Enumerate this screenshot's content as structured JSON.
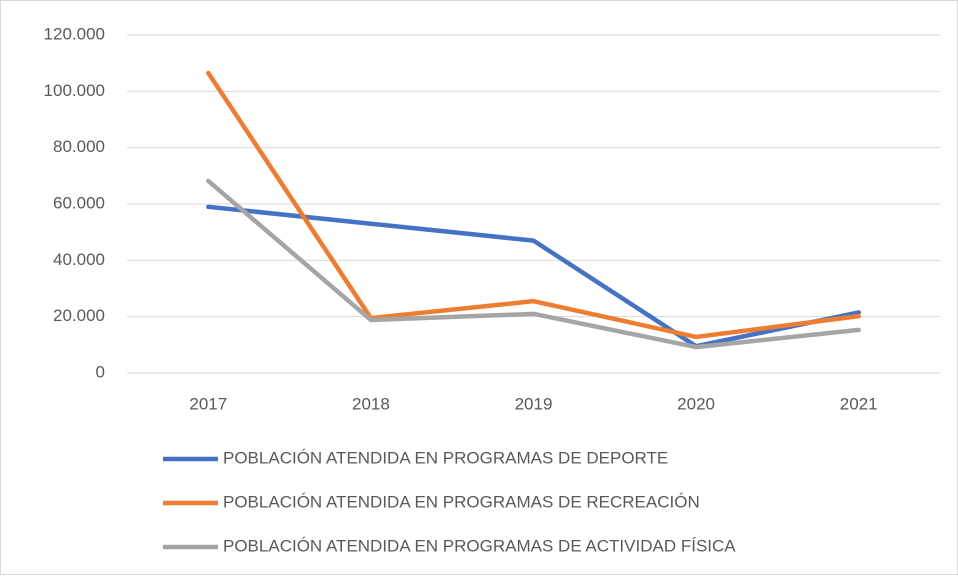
{
  "chart_data": {
    "type": "line",
    "categories": [
      "2017",
      "2018",
      "2019",
      "2020",
      "2021"
    ],
    "series": [
      {
        "name": "POBLACIÓN ATENDIDA EN PROGRAMAS DE DEPORTE",
        "color": "#4472c4",
        "values": [
          59000,
          53000,
          47000,
          9500,
          21500
        ]
      },
      {
        "name": "POBLACIÓN ATENDIDA EN PROGRAMAS DE RECREACIÓN",
        "color": "#ed7d31",
        "values": [
          106500,
          19500,
          25500,
          12800,
          20200
        ]
      },
      {
        "name": "POBLACIÓN ATENDIDA EN PROGRAMAS DE ACTIVIDAD FÍSICA",
        "color": "#a5a5a5",
        "values": [
          68200,
          18800,
          21000,
          9200,
          15300
        ]
      }
    ],
    "ylim": [
      0,
      120000
    ],
    "yticks": [
      0,
      {
        "value": 20000,
        "label": "20.000"
      },
      {
        "value": 40000,
        "label": "40.000"
      },
      {
        "value": 60000,
        "label": "60.000"
      },
      {
        "value": 80000,
        "label": "80.000"
      },
      {
        "value": 100000,
        "label": "100.000"
      },
      {
        "value": 120000,
        "label": "120.000"
      }
    ],
    "grid": true,
    "legend": "bottom"
  }
}
